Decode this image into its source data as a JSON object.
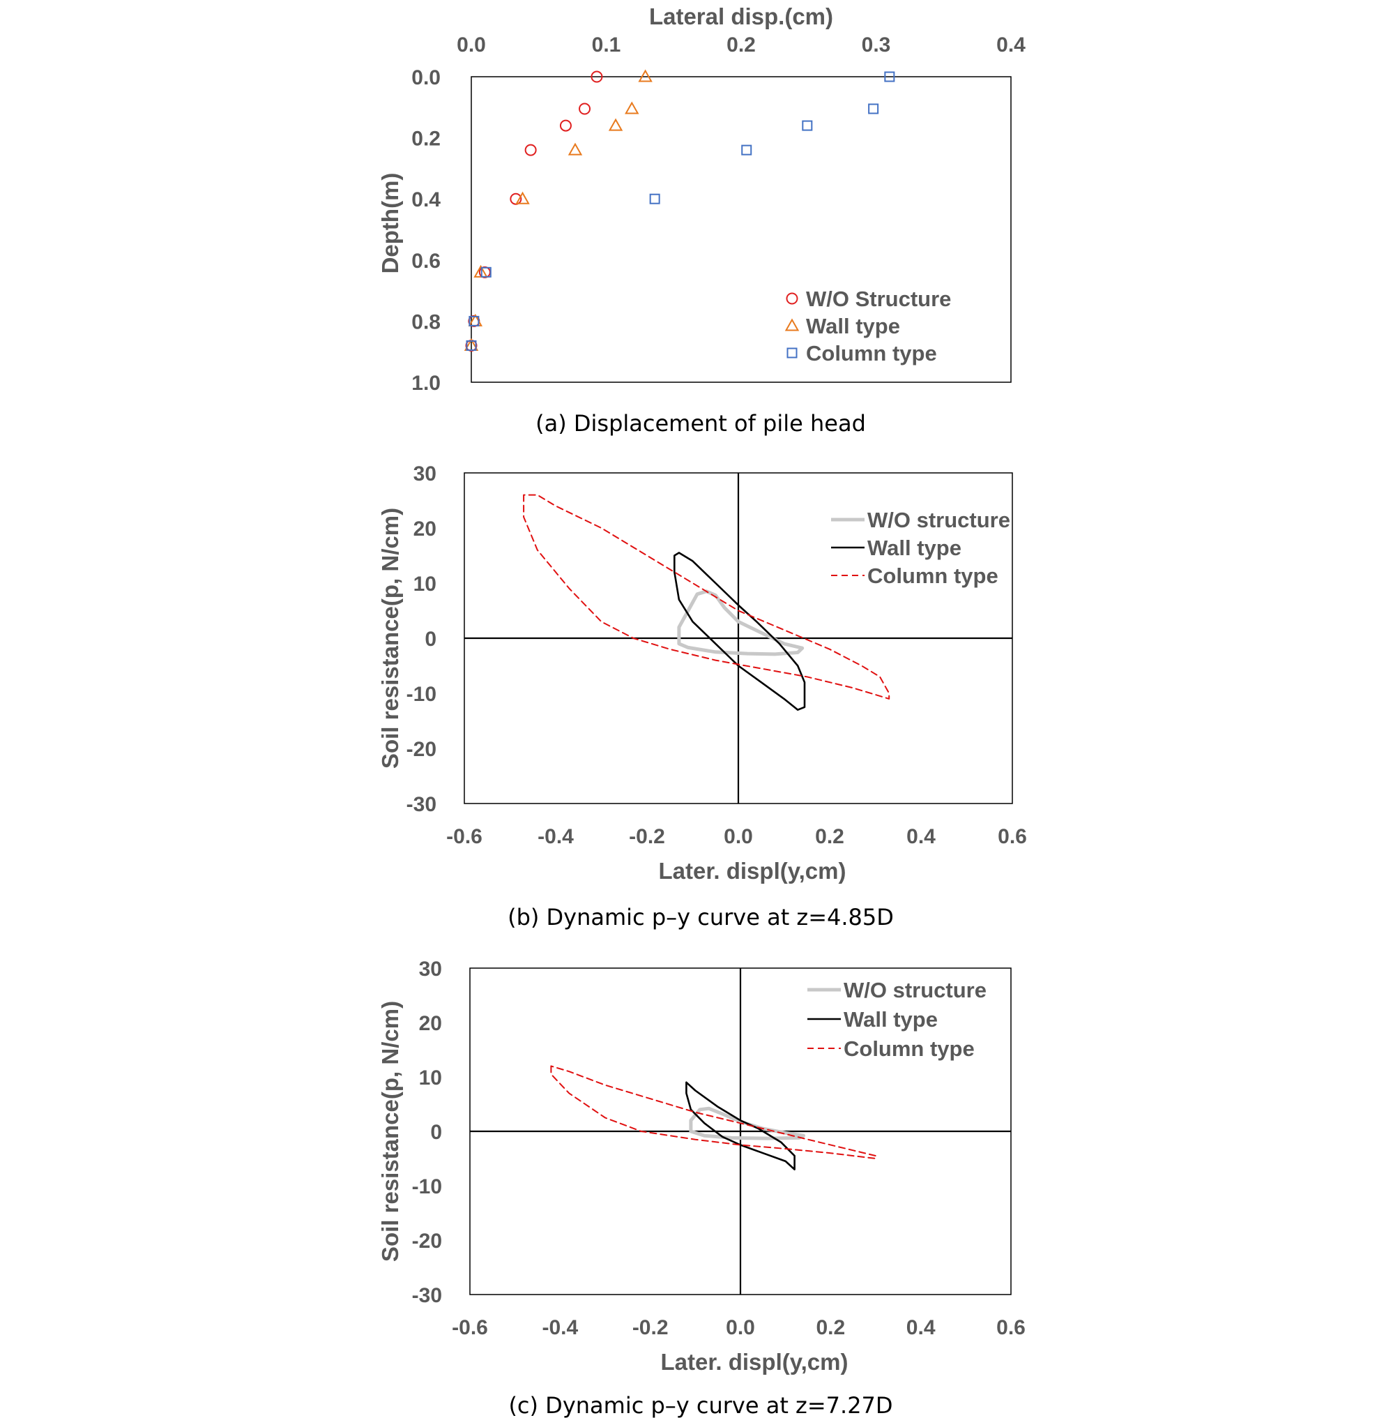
{
  "chart_data": [
    {
      "type": "scatter",
      "caption": "(a)  Displacement  of  pile  head",
      "xlabel": "Lateral disp.(cm)",
      "ylabel": "Depth(m)",
      "xlim": [
        0.0,
        0.4
      ],
      "ylim": [
        0.0,
        1.0
      ],
      "y_inverted": true,
      "x_axis_position": "top",
      "x_ticks": [
        "0.0",
        "0.1",
        "0.2",
        "0.3",
        "0.4"
      ],
      "y_ticks": [
        "0.0",
        "0.2",
        "0.4",
        "0.6",
        "0.8",
        "1.0"
      ],
      "legend_position": "bottom-right",
      "series": [
        {
          "name": "W/O Structure",
          "marker": "circle",
          "color": "#e02020",
          "points": [
            [
              0.093,
              0.0
            ],
            [
              0.084,
              0.105
            ],
            [
              0.07,
              0.16
            ],
            [
              0.044,
              0.24
            ],
            [
              0.033,
              0.4
            ],
            [
              0.01,
              0.64
            ],
            [
              0.002,
              0.8
            ],
            [
              0.0,
              0.88
            ]
          ]
        },
        {
          "name": "Wall type",
          "marker": "triangle",
          "color": "#e87a1e",
          "points": [
            [
              0.129,
              0.0
            ],
            [
              0.119,
              0.105
            ],
            [
              0.107,
              0.16
            ],
            [
              0.077,
              0.24
            ],
            [
              0.038,
              0.4
            ],
            [
              0.007,
              0.64
            ],
            [
              0.003,
              0.8
            ],
            [
              0.0,
              0.88
            ]
          ]
        },
        {
          "name": "Column type",
          "marker": "square",
          "color": "#4472c4",
          "points": [
            [
              0.31,
              0.0
            ],
            [
              0.298,
              0.105
            ],
            [
              0.249,
              0.16
            ],
            [
              0.204,
              0.24
            ],
            [
              0.136,
              0.4
            ],
            [
              0.011,
              0.64
            ],
            [
              0.002,
              0.8
            ],
            [
              0.0,
              0.88
            ]
          ]
        }
      ]
    },
    {
      "type": "line",
      "caption": "(b)  Dynamic  p–y  curve  at  z=4.85D",
      "xlabel": "Later. displ(y,cm)",
      "ylabel": "Soil resistance(p, N/cm)",
      "xlim": [
        -0.6,
        0.6
      ],
      "ylim": [
        -30,
        30
      ],
      "x_ticks": [
        "-0.6",
        "-0.4",
        "-0.2",
        "0.0",
        "0.2",
        "0.4",
        "0.6"
      ],
      "y_ticks": [
        "30",
        "20",
        "10",
        "0",
        "-10",
        "-20",
        "-30"
      ],
      "legend_position": "top-right",
      "series": [
        {
          "name": "W/O structure",
          "color": "#c8c8c8",
          "style": "solid-thick",
          "points": [
            [
              -0.09,
              8
            ],
            [
              -0.11,
              5
            ],
            [
              -0.13,
              2
            ],
            [
              -0.13,
              -1
            ],
            [
              -0.11,
              -1.7
            ],
            [
              -0.05,
              -2.5
            ],
            [
              0.02,
              -2.8
            ],
            [
              0.08,
              -2.9
            ],
            [
              0.13,
              -2.6
            ],
            [
              0.14,
              -1.8
            ],
            [
              0.1,
              -1.0
            ],
            [
              0.05,
              1.0
            ],
            [
              0.0,
              3.0
            ],
            [
              -0.03,
              5.5
            ],
            [
              -0.05,
              7.8
            ],
            [
              -0.07,
              8.5
            ],
            [
              -0.09,
              8
            ]
          ]
        },
        {
          "name": "Wall type",
          "color": "#000000",
          "style": "solid",
          "points": [
            [
              -0.14,
              15
            ],
            [
              -0.14,
              12
            ],
            [
              -0.13,
              7
            ],
            [
              -0.1,
              3
            ],
            [
              -0.05,
              -1
            ],
            [
              0.0,
              -5
            ],
            [
              0.05,
              -8
            ],
            [
              0.1,
              -11
            ],
            [
              0.13,
              -13
            ],
            [
              0.145,
              -12.5
            ],
            [
              0.145,
              -8
            ],
            [
              0.13,
              -5
            ],
            [
              0.09,
              -1
            ],
            [
              0.04,
              3
            ],
            [
              0.0,
              6
            ],
            [
              -0.05,
              10
            ],
            [
              -0.1,
              14
            ],
            [
              -0.13,
              15.5
            ],
            [
              -0.14,
              15
            ]
          ]
        },
        {
          "name": "Column type",
          "color": "#e01010",
          "style": "dashed",
          "points": [
            [
              -0.47,
              26
            ],
            [
              -0.47,
              22
            ],
            [
              -0.44,
              16
            ],
            [
              -0.37,
              9
            ],
            [
              -0.3,
              3
            ],
            [
              -0.23,
              0
            ],
            [
              -0.15,
              -2
            ],
            [
              -0.05,
              -4
            ],
            [
              0.05,
              -5.5
            ],
            [
              0.15,
              -7
            ],
            [
              0.25,
              -9
            ],
            [
              0.33,
              -11
            ],
            [
              0.33,
              -10
            ],
            [
              0.31,
              -7
            ],
            [
              0.27,
              -5
            ],
            [
              0.2,
              -2
            ],
            [
              0.1,
              1.5
            ],
            [
              0.0,
              5
            ],
            [
              -0.1,
              10
            ],
            [
              -0.2,
              15
            ],
            [
              -0.3,
              20
            ],
            [
              -0.4,
              24
            ],
            [
              -0.44,
              26
            ],
            [
              -0.47,
              26
            ]
          ]
        }
      ]
    },
    {
      "type": "line",
      "caption": "(c)  Dynamic  p–y  curve  at  z=7.27D",
      "xlabel": "Later. displ(y,cm)",
      "ylabel": "Soil resistance(p, N/cm)",
      "xlim": [
        -0.6,
        0.6
      ],
      "ylim": [
        -30,
        30
      ],
      "x_ticks": [
        "-0.6",
        "-0.4",
        "-0.2",
        "0.0",
        "0.2",
        "0.4",
        "0.6"
      ],
      "y_ticks": [
        "30",
        "20",
        "10",
        "0",
        "-10",
        "-20",
        "-30"
      ],
      "legend_position": "top-right",
      "series": [
        {
          "name": "W/O structure",
          "color": "#c8c8c8",
          "style": "solid-thick",
          "points": [
            [
              -0.09,
              4
            ],
            [
              -0.11,
              2
            ],
            [
              -0.11,
              0
            ],
            [
              -0.08,
              -0.8
            ],
            [
              -0.02,
              -1.2
            ],
            [
              0.06,
              -1.3
            ],
            [
              0.13,
              -1.2
            ],
            [
              0.14,
              -0.8
            ],
            [
              0.1,
              -0.3
            ],
            [
              0.05,
              0.5
            ],
            [
              0.0,
              1.8
            ],
            [
              -0.04,
              3.2
            ],
            [
              -0.07,
              4.2
            ],
            [
              -0.09,
              4
            ]
          ]
        },
        {
          "name": "Wall type",
          "color": "#000000",
          "style": "solid",
          "points": [
            [
              -0.12,
              9
            ],
            [
              -0.12,
              7
            ],
            [
              -0.11,
              4
            ],
            [
              -0.08,
              1.5
            ],
            [
              -0.04,
              -1
            ],
            [
              0.0,
              -2.5
            ],
            [
              0.05,
              -4
            ],
            [
              0.1,
              -5.5
            ],
            [
              0.12,
              -7
            ],
            [
              0.12,
              -4.5
            ],
            [
              0.09,
              -2
            ],
            [
              0.04,
              0.5
            ],
            [
              0.0,
              2
            ],
            [
              -0.05,
              4.5
            ],
            [
              -0.1,
              7.5
            ],
            [
              -0.12,
              9
            ]
          ]
        },
        {
          "name": "Column type",
          "color": "#e01010",
          "style": "dashed",
          "points": [
            [
              -0.42,
              12
            ],
            [
              -0.42,
              10.5
            ],
            [
              -0.38,
              7
            ],
            [
              -0.3,
              2.5
            ],
            [
              -0.22,
              0
            ],
            [
              -0.1,
              -1.5
            ],
            [
              0.0,
              -2.5
            ],
            [
              0.1,
              -3.2
            ],
            [
              0.2,
              -4
            ],
            [
              0.3,
              -5
            ],
            [
              0.3,
              -4.5
            ],
            [
              0.25,
              -3.5
            ],
            [
              0.15,
              -1.5
            ],
            [
              0.05,
              0.5
            ],
            [
              0.0,
              1.5
            ],
            [
              -0.1,
              3.5
            ],
            [
              -0.2,
              6
            ],
            [
              -0.3,
              8.5
            ],
            [
              -0.38,
              11
            ],
            [
              -0.42,
              12
            ]
          ]
        }
      ]
    }
  ]
}
